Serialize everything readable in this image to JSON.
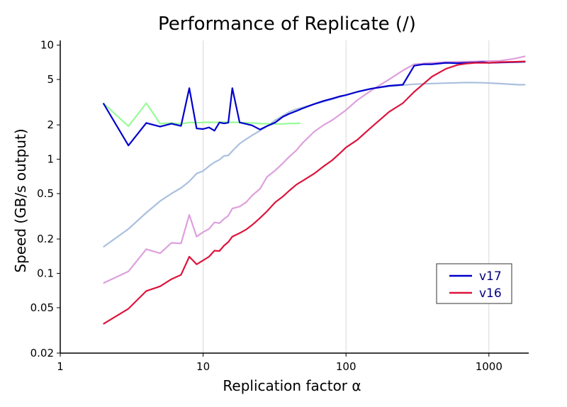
{
  "chart_data": {
    "type": "line",
    "title": "Performance of Replicate (/)",
    "xlabel": "Replication factor α",
    "ylabel": "Speed (GB/s output)",
    "xscale": "log",
    "yscale": "log",
    "xlim": [
      1,
      1900
    ],
    "ylim": [
      0.02,
      11
    ],
    "x_ticks": [
      {
        "value": 1,
        "label": "1"
      },
      {
        "value": 10,
        "label": "10"
      },
      {
        "value": 100,
        "label": "100"
      },
      {
        "value": 1000,
        "label": "1000"
      }
    ],
    "y_ticks": [
      {
        "value": 0.02,
        "label": "0.02"
      },
      {
        "value": 0.05,
        "label": "0.05"
      },
      {
        "value": 0.1,
        "label": "0.1"
      },
      {
        "value": 0.2,
        "label": "0.2"
      },
      {
        "value": 0.5,
        "label": "0.5"
      },
      {
        "value": 1,
        "label": "1"
      },
      {
        "value": 2,
        "label": "2"
      },
      {
        "value": 5,
        "label": "5"
      },
      {
        "value": 10,
        "label": "10"
      }
    ],
    "grid": "vertical lines at 10, 100, 1000",
    "legend_position": "lower-right",
    "series": [
      {
        "color": "#aac0de",
        "x": [
          2,
          3,
          4,
          5,
          6,
          7,
          8,
          9,
          10,
          11,
          12,
          13,
          14,
          15,
          16,
          18,
          20,
          22,
          25,
          28,
          32,
          36,
          40,
          45,
          50,
          60,
          70,
          80,
          90,
          100,
          120,
          150,
          200,
          300,
          500,
          700,
          900,
          1200,
          1600,
          1800
        ],
        "values": [
          0.17,
          0.245,
          0.34,
          0.43,
          0.5,
          0.56,
          0.64,
          0.75,
          0.79,
          0.87,
          0.94,
          0.99,
          1.07,
          1.08,
          1.18,
          1.37,
          1.5,
          1.62,
          1.78,
          1.95,
          2.2,
          2.4,
          2.6,
          2.75,
          2.85,
          3.05,
          3.2,
          3.35,
          3.5,
          3.65,
          3.9,
          4.15,
          4.35,
          4.55,
          4.65,
          4.7,
          4.68,
          4.6,
          4.5,
          4.5
        ]
      },
      {
        "color": "#dda0dd",
        "x": [
          2,
          3,
          4,
          5,
          6,
          7,
          8,
          9,
          10,
          11,
          12,
          13,
          14,
          15,
          16,
          18,
          20,
          22,
          25,
          28,
          32,
          36,
          40,
          45,
          50,
          60,
          70,
          80,
          90,
          100,
          120,
          150,
          200,
          250,
          300,
          400,
          500,
          600,
          800,
          1000,
          1200,
          1500,
          1800
        ],
        "values": [
          0.082,
          0.104,
          0.163,
          0.15,
          0.185,
          0.183,
          0.325,
          0.21,
          0.23,
          0.245,
          0.28,
          0.275,
          0.3,
          0.32,
          0.37,
          0.385,
          0.42,
          0.48,
          0.55,
          0.7,
          0.8,
          0.92,
          1.05,
          1.2,
          1.4,
          1.75,
          2.0,
          2.2,
          2.45,
          2.7,
          3.3,
          4.0,
          5.0,
          6.0,
          6.8,
          7.0,
          7.1,
          7.15,
          7.2,
          7.25,
          7.3,
          7.6,
          8.0
        ]
      },
      {
        "color": "#98fb98",
        "x": [
          2,
          3,
          4,
          5,
          6,
          7,
          8,
          9,
          10,
          11,
          12,
          13,
          14,
          15,
          16,
          18,
          20,
          22,
          25,
          28,
          32,
          36,
          40,
          45,
          48
        ],
        "values": [
          3.1,
          1.95,
          3.1,
          2.05,
          2.08,
          2.04,
          2.1,
          2.09,
          2.1,
          2.11,
          2.1,
          2.11,
          2.12,
          2.1,
          2.11,
          2.1,
          2.09,
          2.08,
          2.05,
          2.05,
          2.04,
          2.04,
          2.06,
          2.06,
          2.07
        ]
      },
      {
        "name": "v17",
        "color": "#0000cd",
        "x": [
          2,
          3,
          4,
          5,
          6,
          7,
          8,
          9,
          10,
          11,
          12,
          13,
          14,
          15,
          16,
          18,
          20,
          22,
          25,
          28,
          32,
          36,
          40,
          45,
          50,
          60,
          70,
          80,
          90,
          100,
          120,
          150,
          200,
          250,
          300,
          350,
          400,
          500,
          600,
          700,
          800,
          900,
          1000,
          1200,
          1500,
          1800
        ],
        "values": [
          3.1,
          1.32,
          2.08,
          1.93,
          2.05,
          1.96,
          4.2,
          1.86,
          1.84,
          1.9,
          1.78,
          2.1,
          2.06,
          2.09,
          4.2,
          2.1,
          2.04,
          1.98,
          1.82,
          1.95,
          2.1,
          2.35,
          2.5,
          2.65,
          2.8,
          3.05,
          3.25,
          3.4,
          3.55,
          3.65,
          3.9,
          4.15,
          4.4,
          4.5,
          6.6,
          6.8,
          6.8,
          7.0,
          6.95,
          7.0,
          7.05,
          7.1,
          7.0,
          7.05,
          7.1,
          7.15
        ]
      },
      {
        "name": "v16",
        "color": "#dc143c",
        "x": [
          2,
          3,
          4,
          5,
          6,
          7,
          8,
          9,
          10,
          11,
          12,
          13,
          14,
          15,
          16,
          18,
          20,
          22,
          25,
          28,
          32,
          36,
          40,
          45,
          50,
          60,
          70,
          80,
          90,
          100,
          120,
          150,
          200,
          250,
          300,
          400,
          500,
          600,
          700,
          800,
          1000,
          1200,
          1500,
          1800
        ],
        "values": [
          0.036,
          0.049,
          0.07,
          0.077,
          0.089,
          0.097,
          0.14,
          0.12,
          0.13,
          0.14,
          0.158,
          0.157,
          0.175,
          0.188,
          0.21,
          0.225,
          0.242,
          0.265,
          0.305,
          0.35,
          0.42,
          0.47,
          0.53,
          0.6,
          0.65,
          0.75,
          0.87,
          0.98,
          1.12,
          1.27,
          1.48,
          1.9,
          2.6,
          3.1,
          3.9,
          5.3,
          6.2,
          6.7,
          6.9,
          7.0,
          7.0,
          7.1,
          7.15,
          7.2
        ]
      }
    ]
  }
}
